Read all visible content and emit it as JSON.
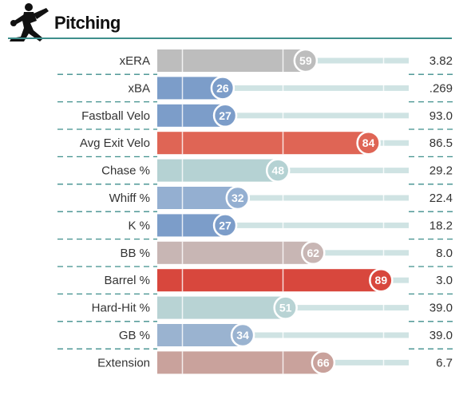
{
  "header": {
    "title": "Pitching",
    "icon": "pitcher-silhouette-icon"
  },
  "chart_data": {
    "type": "bar",
    "orientation": "horizontal",
    "title": "Pitching",
    "xlim": [
      0,
      100
    ],
    "grid": true,
    "rows": [
      {
        "metric": "xERA",
        "percentile": 59,
        "value": "3.82",
        "color": "#bdbdbd"
      },
      {
        "metric": "xBA",
        "percentile": 26,
        "value": ".269",
        "color": "#7c9dc9"
      },
      {
        "metric": "Fastball Velo",
        "percentile": 27,
        "value": "93.0",
        "color": "#7c9dc9"
      },
      {
        "metric": "Avg Exit Velo",
        "percentile": 84,
        "value": "86.5",
        "color": "#df6555"
      },
      {
        "metric": "Chase %",
        "percentile": 48,
        "value": "29.2",
        "color": "#b5d2d3"
      },
      {
        "metric": "Whiff %",
        "percentile": 32,
        "value": "22.4",
        "color": "#94afd1"
      },
      {
        "metric": "K %",
        "percentile": 27,
        "value": "18.2",
        "color": "#7c9dc9"
      },
      {
        "metric": "BB %",
        "percentile": 62,
        "value": "8.0",
        "color": "#c8b6b4"
      },
      {
        "metric": "Barrel %",
        "percentile": 89,
        "value": "3.0",
        "color": "#d8473d"
      },
      {
        "metric": "Hard-Hit %",
        "percentile": 51,
        "value": "39.0",
        "color": "#b8d3d4"
      },
      {
        "metric": "GB %",
        "percentile": 34,
        "value": "39.0",
        "color": "#9ab3d0"
      },
      {
        "metric": "Extension",
        "percentile": 66,
        "value": "6.7",
        "color": "#c9a29c"
      }
    ]
  },
  "colors": {
    "track": "#cfe3e3",
    "divider": "#3f8f8c"
  }
}
